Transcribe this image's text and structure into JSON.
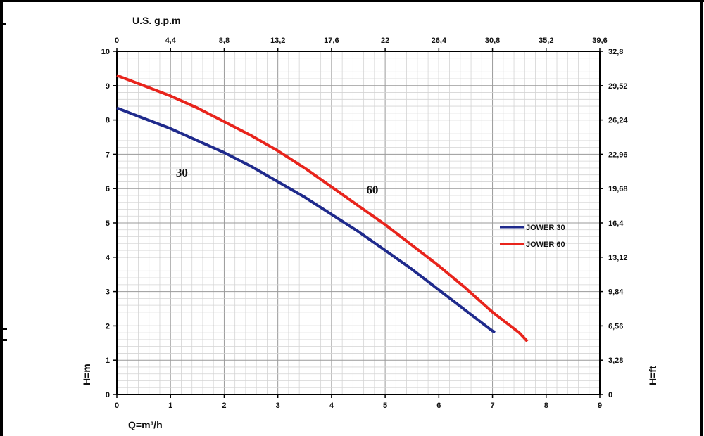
{
  "chart_data": {
    "type": "line",
    "title": "",
    "xlabel": "Q=m³/h",
    "ylabel_left": "H=m",
    "ylabel_right": "H=ft",
    "xlabel_top": "U.S. g.p.m",
    "xlim": [
      0,
      9
    ],
    "ylim": [
      0,
      10
    ],
    "grid": true,
    "x_ticks": [
      "0",
      "1",
      "2",
      "3",
      "4",
      "5",
      "6",
      "7",
      "8",
      "9"
    ],
    "y_ticks": [
      "0",
      "1",
      "2",
      "3",
      "4",
      "5",
      "6",
      "7",
      "8",
      "9",
      "10"
    ],
    "top_ticks": [
      "0",
      "4,4",
      "8,8",
      "13,2",
      "17,6",
      "22",
      "26,4",
      "30,8",
      "35,2",
      "39,6"
    ],
    "right_ticks": [
      "0",
      "3,28",
      "6,56",
      "9,84",
      "13,12",
      "16,4",
      "19,68",
      "22,96",
      "26,24",
      "29,52",
      "32,8"
    ],
    "legend_position": "right",
    "series": [
      {
        "name": "JOWER 30",
        "label": "30",
        "color": "#1f2a8c",
        "x": [
          0,
          0.5,
          1,
          1.5,
          2,
          2.5,
          3,
          3.5,
          4,
          4.5,
          5,
          5.5,
          6,
          6.5,
          7,
          7.05
        ],
        "y": [
          8.35,
          8.05,
          7.75,
          7.4,
          7.05,
          6.65,
          6.2,
          5.75,
          5.25,
          4.75,
          4.2,
          3.65,
          3.05,
          2.45,
          1.85,
          1.82
        ]
      },
      {
        "name": "JOWER 60",
        "label": "60",
        "color": "#e8241c",
        "x": [
          0,
          0.5,
          1,
          1.5,
          2,
          2.5,
          3,
          3.5,
          4,
          4.5,
          5,
          5.5,
          6,
          6.5,
          7,
          7.5,
          7.65
        ],
        "y": [
          9.3,
          9.0,
          8.7,
          8.35,
          7.95,
          7.55,
          7.1,
          6.6,
          6.05,
          5.5,
          4.95,
          4.35,
          3.75,
          3.1,
          2.4,
          1.8,
          1.55
        ]
      }
    ]
  }
}
